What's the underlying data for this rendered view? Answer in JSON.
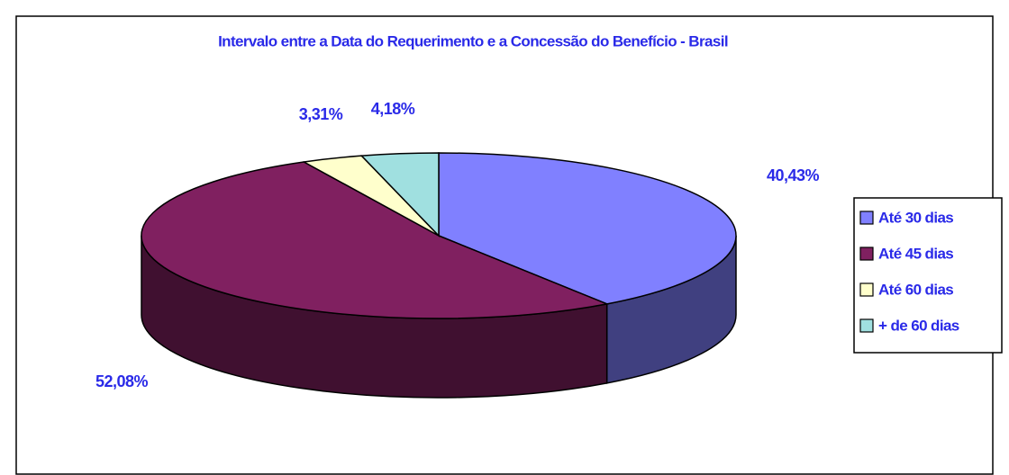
{
  "chart_data": {
    "type": "pie",
    "title": "Intervalo entre a Data do Requerimento e a Concessão do Benefício  -  Brasil",
    "categories": [
      "Até 30 dias",
      "Até 45 dias",
      "Até 60 dias",
      "+ de 60 dias"
    ],
    "values": [
      40.43,
      52.08,
      3.31,
      4.18
    ],
    "value_labels": [
      "40,43%",
      "52,08%",
      "3,31%",
      "4,18%"
    ],
    "colors": [
      "#8080ff",
      "#802060",
      "#ffffcc",
      "#a0e0e0"
    ],
    "legend": "right"
  }
}
